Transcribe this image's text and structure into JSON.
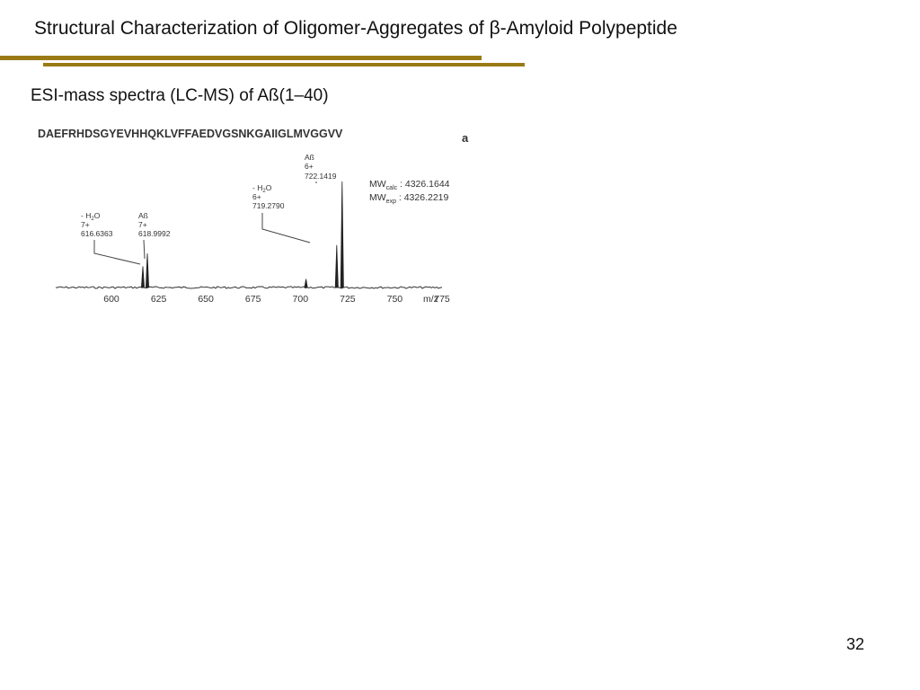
{
  "slide": {
    "title": "Structural Characterization of Oligomer-Aggregates of β-Amyloid Polypeptide",
    "subtitle": "ESI-mass spectra (LC-MS) of Aß(1–40)",
    "page_number": "32"
  },
  "figure": {
    "sequence": "DAEFRHDSGYEVHHQKLVFFAEDVGSNKGAIIGLMVGGVV",
    "panel_label": "a",
    "mw_calc_base": "MW",
    "mw_calc_sub": "calc",
    "mw_calc_value": " : 4326.1644",
    "mw_exp_base": "MW",
    "mw_exp_sub": "exp",
    "mw_exp_value": " : 4326.2219",
    "peak_labels": [
      {
        "line1": "- H",
        "sub": "2",
        "line1_end": "O",
        "line2": "7+",
        "line3": "616.6363"
      },
      {
        "line1": "Aß",
        "sub": "",
        "line1_end": "",
        "line2": "7+",
        "line3": "618.9992"
      },
      {
        "line1": "- H",
        "sub": "2",
        "line1_end": "O",
        "line2": "6+",
        "line3": "719.2790"
      },
      {
        "line1": "Aß",
        "sub": "",
        "line1_end": "",
        "line2": "6+",
        "line3": "722.1419"
      }
    ],
    "x_axis_unit": "m/z"
  },
  "chart_data": {
    "type": "line",
    "xlabel": "m/z",
    "xlim": [
      575,
      790
    ],
    "ylim": [
      0,
      1
    ],
    "x_ticks": [
      600,
      625,
      650,
      675,
      700,
      725,
      750,
      775
    ],
    "peaks": [
      {
        "x": 616.6363,
        "y": 0.2
      },
      {
        "x": 618.9992,
        "y": 0.32
      },
      {
        "x": 703,
        "y": 0.08
      },
      {
        "x": 719.279,
        "y": 0.4
      },
      {
        "x": 722.1419,
        "y": 1.0
      }
    ]
  }
}
